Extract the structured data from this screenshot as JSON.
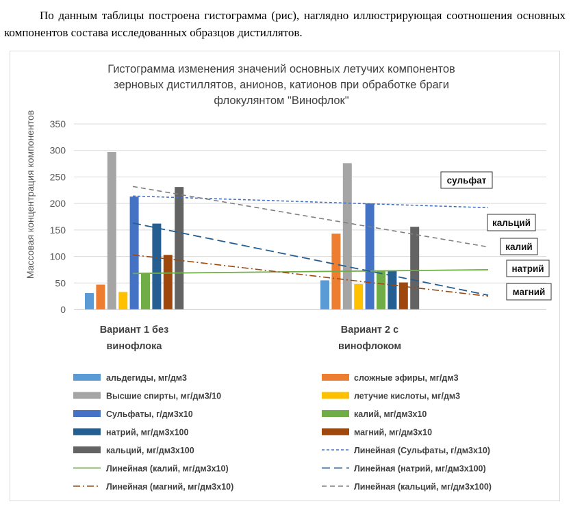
{
  "document": {
    "paragraph": "По данным таблицы построена гистограмма (рис), наглядно иллюстрирующая соотношения основных компонентов состава исследованных образцов дистиллятов."
  },
  "chart_data": {
    "type": "bar",
    "title_lines": [
      "Гистограмма изменения значений основных летучих компонентов",
      "зерновых дистиллятов, анионов, катионов при обработке браги",
      "флокулянтом \"Винофлок\""
    ],
    "ylabel": "Массовая концентрация компонентов",
    "ylim": [
      0,
      350
    ],
    "yticks": [
      0,
      50,
      100,
      150,
      200,
      250,
      300,
      350
    ],
    "grid": true,
    "legend_position": "bottom",
    "categories": [
      {
        "line1": "Вариант 1 без",
        "line2": "винофлока"
      },
      {
        "line1": "Вариант 2 с",
        "line2": "винофлоком"
      }
    ],
    "series": [
      {
        "name": "альдегиды, мг/дм3",
        "color": "#5b9bd5",
        "values": [
          31,
          55
        ]
      },
      {
        "name": "сложные эфиры, мг/дм3",
        "color": "#ed7d31",
        "values": [
          47,
          143
        ]
      },
      {
        "name": "Высшие спирты, мг/дм3/10",
        "color": "#a5a5a5",
        "values": [
          297,
          276
        ]
      },
      {
        "name": "летучие кислоты, мг/дм3",
        "color": "#ffc000",
        "values": [
          33,
          48
        ]
      },
      {
        "name": "Сульфаты, г/дм3х10",
        "color": "#4472c4",
        "values": [
          213,
          200
        ]
      },
      {
        "name": "калий, мг/дм3х10",
        "color": "#70ad47",
        "values": [
          68,
          73
        ]
      },
      {
        "name": "натрий, мг/дм3х100",
        "color": "#255e91",
        "values": [
          162,
          73
        ]
      },
      {
        "name": "магний, мг/дм3х10",
        "color": "#9e480e",
        "values": [
          103,
          51
        ]
      },
      {
        "name": "кальций, мг/дм3х100",
        "color": "#636363",
        "values": [
          231,
          156
        ]
      }
    ],
    "trendlines": [
      {
        "name": "Линейная (Сульфаты, г/дм3х10)",
        "color": "#4472c4",
        "dash": "4,3",
        "width": 1.6,
        "start": 214,
        "end": 192
      },
      {
        "name": "Линейная (калий, мг/дм3х10)",
        "color": "#70ad47",
        "dash": "",
        "width": 1.8,
        "start": 68,
        "end": 75
      },
      {
        "name": "Линейная (натрий, мг/дм3х100)",
        "color": "#255e91",
        "dash": "12,6",
        "width": 1.8,
        "start": 163,
        "end": 27
      },
      {
        "name": "Линейная (магний, мг/дм3х10)",
        "color": "#9e480e",
        "dash": "10,4,2,4",
        "width": 1.6,
        "start": 103,
        "end": 25
      },
      {
        "name": "Линейная (кальций, мг/дм3х100)",
        "color": "#7f7f7f",
        "dash": "7,5",
        "width": 1.6,
        "start": 232,
        "end": 118
      }
    ],
    "annotations": [
      "сульфат",
      "кальций",
      "калий",
      "натрий",
      "магний"
    ]
  }
}
